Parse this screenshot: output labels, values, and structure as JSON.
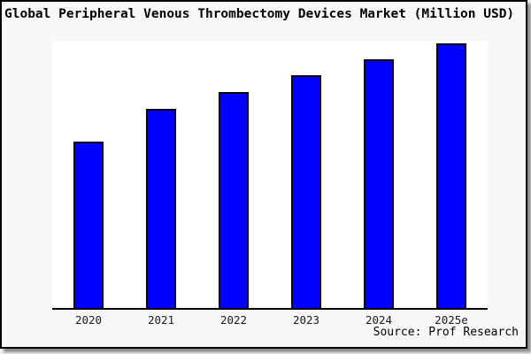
{
  "title": "Global Peripheral Venous Thrombectomy Devices Market (Million USD)",
  "source_credit": "Source: Prof Research",
  "colors": {
    "background": "#f8f8f8",
    "plot_background": "#ffffff",
    "frame_border": "#000000",
    "bar_fill": "#0000ff",
    "bar_border": "#000000",
    "text": "#000000"
  },
  "chart_data": {
    "type": "bar",
    "title": "Global Peripheral Venous Thrombectomy Devices Market (Million USD)",
    "categories": [
      "2020",
      "2021",
      "2022",
      "2023",
      "2024",
      "2025e"
    ],
    "values": [
      62.9,
      75.3,
      81.6,
      88.0,
      94.0,
      100.0
    ],
    "value_scale": "relative, percent of tallest bar (chart shows no y-axis tick labels)",
    "xlabel": "",
    "ylabel": "",
    "ylim": [
      0,
      100
    ],
    "y_axis_visible": false,
    "grid": false,
    "legend": false,
    "bar_color": "#0000ff",
    "bar_border_color": "#000000",
    "source": "Source: Prof Research"
  }
}
